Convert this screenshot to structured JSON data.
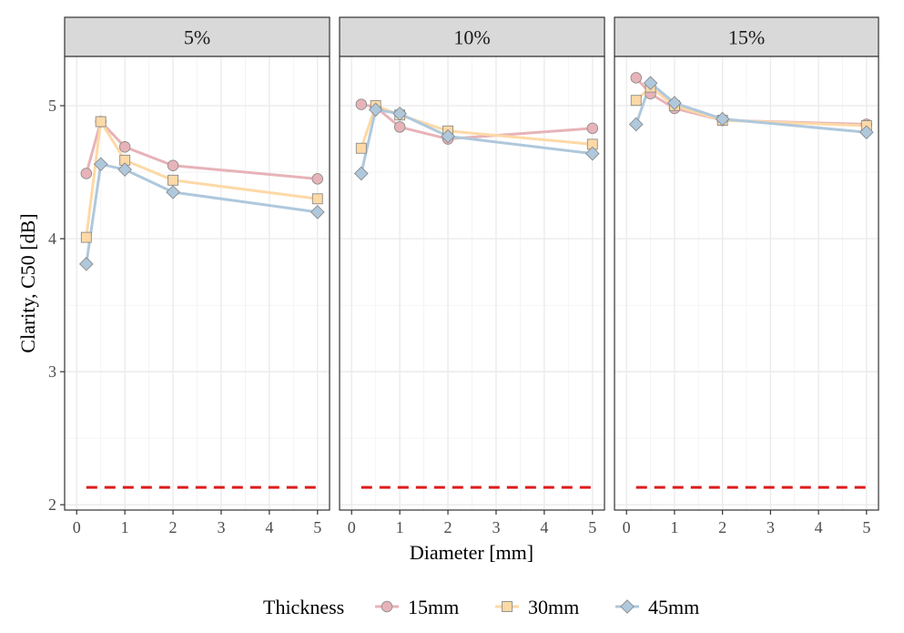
{
  "chart_data": {
    "type": "line",
    "facets": [
      "5%",
      "10%",
      "15%"
    ],
    "xlabel": "Diameter [mm]",
    "ylabel": "Clarity, C50 [dB]",
    "xlim": [
      0,
      5
    ],
    "ylim": [
      2,
      5
    ],
    "x_ticks": [
      "0",
      "1",
      "2",
      "3",
      "4",
      "5"
    ],
    "y_ticks": [
      "2",
      "3",
      "4",
      "5"
    ],
    "x": [
      0.2,
      0.5,
      1,
      2,
      5
    ],
    "reference_line": 2.13,
    "legend_title": "Thickness",
    "legend_position": "bottom",
    "grid": true,
    "series": [
      {
        "name": "15mm",
        "color": "#e7b3b8",
        "marker": "circle",
        "values": {
          "5%": [
            4.49,
            4.88,
            4.69,
            4.55,
            4.45
          ],
          "10%": [
            5.01,
            4.99,
            4.84,
            4.75,
            4.83
          ],
          "15%": [
            5.21,
            5.09,
            4.98,
            4.89,
            4.86
          ]
        }
      },
      {
        "name": "30mm",
        "color": "#fdd9a6",
        "marker": "square",
        "values": {
          "5%": [
            4.01,
            4.88,
            4.59,
            4.44,
            4.3
          ],
          "10%": [
            4.68,
            5.0,
            4.93,
            4.81,
            4.71
          ],
          "15%": [
            5.04,
            5.14,
            5.0,
            4.89,
            4.85
          ]
        }
      },
      {
        "name": "45mm",
        "color": "#afc8dc",
        "marker": "diamond",
        "values": {
          "5%": [
            3.81,
            4.56,
            4.52,
            4.35,
            4.2
          ],
          "10%": [
            4.49,
            4.97,
            4.94,
            4.77,
            4.64
          ],
          "15%": [
            4.86,
            5.17,
            5.02,
            4.9,
            4.8
          ]
        }
      }
    ]
  }
}
